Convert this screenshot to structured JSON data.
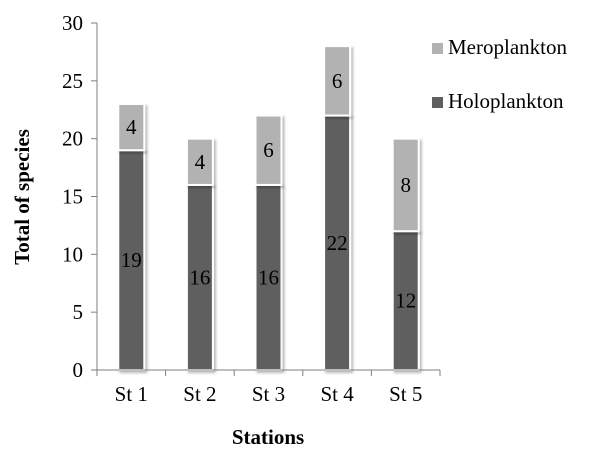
{
  "chart_data": {
    "type": "bar",
    "stacked": true,
    "categories": [
      "St 1",
      "St 2",
      "St 3",
      "St 4",
      "St 5"
    ],
    "series": [
      {
        "name": "Holoplankton",
        "color": "#5f5f5f",
        "values": [
          19,
          16,
          16,
          22,
          12
        ]
      },
      {
        "name": "Meroplankton",
        "color": "#b2b2b2",
        "values": [
          4,
          4,
          6,
          6,
          8
        ]
      }
    ],
    "legend_order": [
      1,
      0
    ],
    "legend_position": "top-right",
    "xlabel": "Stations",
    "ylabel": "Total of species",
    "ylim": [
      0,
      30
    ],
    "yticks": [
      "0",
      "5",
      "10",
      "15",
      "20",
      "25",
      "30"
    ],
    "grid": false
  }
}
